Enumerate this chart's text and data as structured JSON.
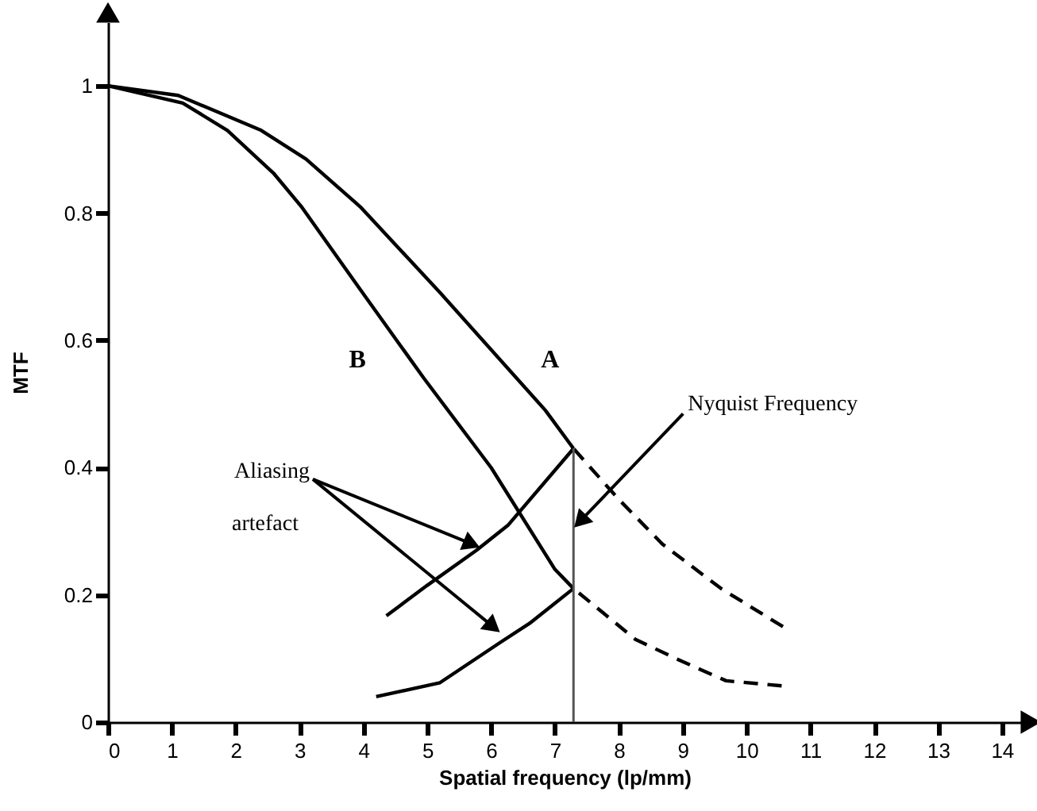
{
  "chart_data": {
    "type": "line",
    "xlabel": "Spatial frequency (lp/mm)",
    "ylabel": "MTF",
    "xlim": [
      0,
      14.3
    ],
    "ylim": [
      0,
      1.1
    ],
    "xticks": [
      0,
      1,
      2,
      3,
      4,
      5,
      6,
      7,
      8,
      9,
      10,
      11,
      12,
      13,
      14
    ],
    "yticks": [
      {
        "value": 0,
        "label": "0"
      },
      {
        "value": 0.2,
        "label": "0.2"
      },
      {
        "value": 0.4,
        "label": "0.4"
      },
      {
        "value": 0.6,
        "label": "0.6"
      },
      {
        "value": 0.8,
        "label": "0.8"
      },
      {
        "value": 1,
        "label": "1"
      }
    ],
    "grid": false,
    "marker": "none",
    "series": [
      {
        "name": "A",
        "color": "#000000",
        "line_style": "solid",
        "x": [
          0,
          1.1,
          2.4,
          3.1,
          3.95,
          5.2,
          6.85,
          7.29
        ],
        "values": [
          1,
          0.985,
          0.93,
          0.885,
          0.81,
          0.675,
          0.49,
          0.43
        ]
      },
      {
        "color": "#000000",
        "line_style": "dashed",
        "x": [
          7.29,
          8.0,
          8.68,
          9.6,
          10.57
        ],
        "values": [
          0.43,
          0.35,
          0.28,
          0.21,
          0.15
        ]
      },
      {
        "name": "B",
        "color": "#000000",
        "line_style": "solid",
        "x": [
          0,
          1.17,
          1.87,
          2.59,
          3.03,
          3.95,
          4.95,
          6.0,
          7.0,
          7.29
        ],
        "values": [
          1,
          0.973,
          0.93,
          0.863,
          0.81,
          0.68,
          0.54,
          0.4,
          0.24,
          0.21
        ]
      },
      {
        "color": "#000000",
        "line_style": "dashed",
        "x": [
          7.29,
          8.26,
          9.0,
          9.68,
          10.55
        ],
        "values": [
          0.21,
          0.13,
          0.095,
          0.065,
          0.057
        ]
      },
      {
        "color": "#000000",
        "line_style": "solid",
        "x": [
          4.36,
          5.0,
          5.77,
          6.27,
          7.29
        ],
        "values": [
          0.167,
          0.215,
          0.27,
          0.31,
          0.43
        ]
      },
      {
        "color": "#000000",
        "line_style": "solid",
        "x": [
          4.2,
          5.2,
          6.14,
          6.6,
          7.29
        ],
        "values": [
          0.04,
          0.062,
          0.125,
          0.155,
          0.21
        ]
      }
    ],
    "ref_lines": [
      {
        "axis": "x",
        "value": 7.29,
        "color": "#555555",
        "line_style": "solid"
      }
    ],
    "annotations": [
      {
        "text": "Nyquist Frequency",
        "x": 7.34,
        "y": 0.31
      },
      {
        "text": "Aliasing",
        "x": 5.77,
        "y": 0.277
      },
      "artefact"
    ]
  }
}
